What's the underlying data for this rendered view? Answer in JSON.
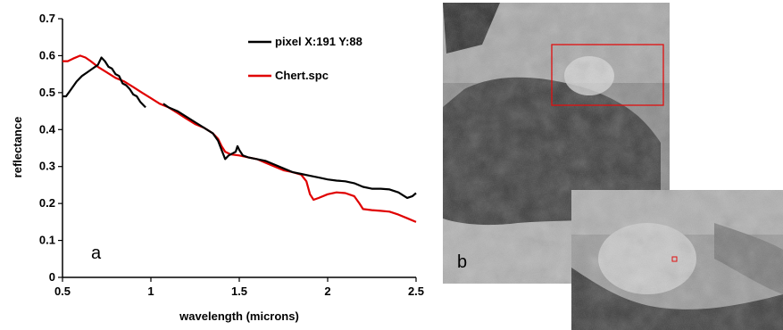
{
  "colors": {
    "series_black": "#000000",
    "series_red": "#e00000",
    "roi_box": "#e01010"
  },
  "chart_data": {
    "type": "line",
    "title": "",
    "xlabel": "wavelength (microns)",
    "ylabel": "reflectance",
    "xlim": [
      0.5,
      2.5
    ],
    "ylim": [
      0,
      0.7
    ],
    "x_ticks": [
      "0.5",
      "1",
      "1.5",
      "2",
      "2.5"
    ],
    "y_ticks": [
      "0",
      "0.1",
      "0.2",
      "0.3",
      "0.4",
      "0.5",
      "0.6",
      "0.7"
    ],
    "grid": false,
    "legend_position": "top-right",
    "panel_label": "a",
    "series": [
      {
        "name": "pixel X:191 Y:88",
        "color": "#000000",
        "segments": [
          [
            [
              0.5,
              0.49
            ],
            [
              0.52,
              0.49
            ],
            [
              0.55,
              0.51
            ],
            [
              0.58,
              0.53
            ],
            [
              0.61,
              0.545
            ],
            [
              0.64,
              0.555
            ],
            [
              0.67,
              0.565
            ],
            [
              0.7,
              0.575
            ],
            [
              0.72,
              0.595
            ],
            [
              0.74,
              0.585
            ],
            [
              0.76,
              0.57
            ],
            [
              0.78,
              0.565
            ],
            [
              0.8,
              0.55
            ],
            [
              0.82,
              0.545
            ],
            [
              0.84,
              0.525
            ],
            [
              0.86,
              0.52
            ],
            [
              0.88,
              0.51
            ],
            [
              0.9,
              0.495
            ],
            [
              0.92,
              0.49
            ],
            [
              0.94,
              0.475
            ],
            [
              0.96,
              0.465
            ],
            [
              0.97,
              0.46
            ]
          ],
          [
            [
              1.07,
              0.47
            ],
            [
              1.1,
              0.46
            ],
            [
              1.15,
              0.45
            ],
            [
              1.2,
              0.435
            ],
            [
              1.25,
              0.42
            ],
            [
              1.3,
              0.405
            ],
            [
              1.35,
              0.39
            ],
            [
              1.38,
              0.37
            ],
            [
              1.4,
              0.345
            ],
            [
              1.42,
              0.32
            ],
            [
              1.44,
              0.33
            ],
            [
              1.46,
              0.335
            ],
            [
              1.48,
              0.34
            ],
            [
              1.49,
              0.355
            ],
            [
              1.5,
              0.345
            ],
            [
              1.52,
              0.33
            ],
            [
              1.55,
              0.325
            ],
            [
              1.6,
              0.32
            ],
            [
              1.65,
              0.315
            ],
            [
              1.7,
              0.305
            ],
            [
              1.75,
              0.295
            ],
            [
              1.8,
              0.285
            ],
            [
              1.85,
              0.28
            ],
            [
              1.9,
              0.275
            ],
            [
              1.95,
              0.27
            ],
            [
              2.0,
              0.265
            ],
            [
              2.05,
              0.262
            ],
            [
              2.1,
              0.26
            ],
            [
              2.15,
              0.255
            ],
            [
              2.2,
              0.245
            ],
            [
              2.25,
              0.24
            ],
            [
              2.3,
              0.24
            ],
            [
              2.35,
              0.238
            ],
            [
              2.4,
              0.23
            ],
            [
              2.45,
              0.215
            ],
            [
              2.48,
              0.22
            ],
            [
              2.5,
              0.228
            ]
          ]
        ]
      },
      {
        "name": "Chert.spc",
        "color": "#e00000",
        "segments": [
          [
            [
              0.5,
              0.585
            ],
            [
              0.53,
              0.585
            ],
            [
              0.56,
              0.592
            ],
            [
              0.6,
              0.6
            ],
            [
              0.63,
              0.595
            ],
            [
              0.66,
              0.585
            ],
            [
              0.7,
              0.57
            ],
            [
              0.75,
              0.555
            ],
            [
              0.8,
              0.54
            ],
            [
              0.85,
              0.53
            ],
            [
              0.9,
              0.515
            ],
            [
              0.95,
              0.5
            ],
            [
              1.0,
              0.485
            ],
            [
              1.05,
              0.47
            ],
            [
              1.1,
              0.46
            ],
            [
              1.15,
              0.445
            ],
            [
              1.2,
              0.43
            ],
            [
              1.25,
              0.415
            ],
            [
              1.3,
              0.405
            ],
            [
              1.35,
              0.39
            ],
            [
              1.38,
              0.375
            ],
            [
              1.4,
              0.355
            ],
            [
              1.42,
              0.34
            ],
            [
              1.45,
              0.333
            ],
            [
              1.5,
              0.33
            ],
            [
              1.55,
              0.325
            ],
            [
              1.6,
              0.32
            ],
            [
              1.65,
              0.31
            ],
            [
              1.7,
              0.3
            ],
            [
              1.75,
              0.29
            ],
            [
              1.8,
              0.285
            ],
            [
              1.85,
              0.278
            ],
            [
              1.88,
              0.26
            ],
            [
              1.9,
              0.225
            ],
            [
              1.92,
              0.21
            ],
            [
              1.95,
              0.215
            ],
            [
              2.0,
              0.225
            ],
            [
              2.05,
              0.23
            ],
            [
              2.1,
              0.228
            ],
            [
              2.15,
              0.22
            ],
            [
              2.18,
              0.2
            ],
            [
              2.2,
              0.185
            ],
            [
              2.25,
              0.182
            ],
            [
              2.3,
              0.18
            ],
            [
              2.35,
              0.178
            ],
            [
              2.4,
              0.17
            ],
            [
              2.45,
              0.16
            ],
            [
              2.5,
              0.15
            ]
          ]
        ]
      }
    ]
  },
  "image_panel": {
    "label": "b"
  }
}
